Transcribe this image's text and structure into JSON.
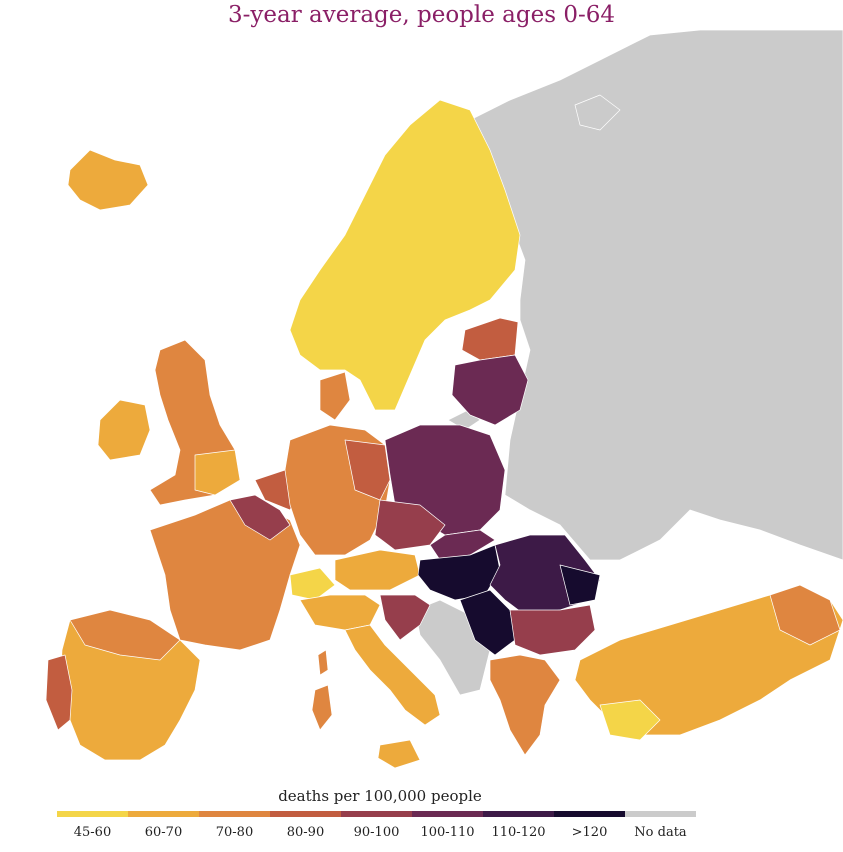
{
  "title": "3-year average, people ages 0-64",
  "legend": {
    "title": "deaths per 100,000 people",
    "items": [
      {
        "label": "45-60",
        "color": "#f4d548"
      },
      {
        "label": "60-70",
        "color": "#edaa3c"
      },
      {
        "label": "70-80",
        "color": "#df8640"
      },
      {
        "label": "80-90",
        "color": "#c25d40"
      },
      {
        "label": "90-100",
        "color": "#963e4c"
      },
      {
        "label": "100-110",
        "color": "#6b2a53"
      },
      {
        "label": "110-120",
        "color": "#3d1a47"
      },
      {
        "label": ">120",
        "color": "#160b2e"
      },
      {
        "label": "No data",
        "color": "#cbcbcb"
      }
    ]
  },
  "map": {
    "background_color": "#cbcbcb",
    "border_color": "#ffffff"
  }
}
